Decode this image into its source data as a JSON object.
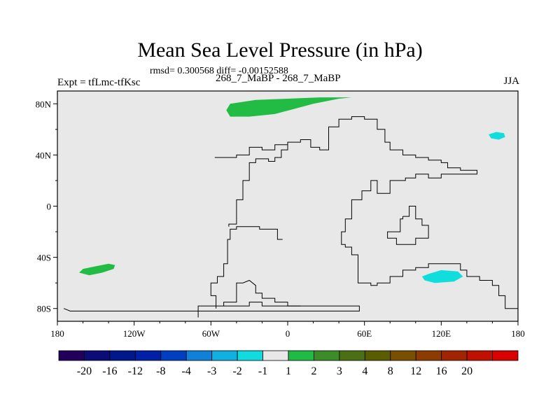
{
  "title": "Mean Sea Level Pressure (in hPa)",
  "stats": "rmsd= 0.300568 diff= -0.00152588",
  "experiment": "Expt = tfLmc-tfKsc",
  "subtitle": "268_7_MaBP - 268_7_MaBP",
  "season": "JJA",
  "map": {
    "lon_range": [
      -180,
      180
    ],
    "lat_range": [
      -90,
      90
    ],
    "background_color": "#e8e8e8",
    "x_ticks": [
      {
        "lon": -180,
        "label": "180"
      },
      {
        "lon": -120,
        "label": "120W"
      },
      {
        "lon": -60,
        "label": "60W"
      },
      {
        "lon": 0,
        "label": "0"
      },
      {
        "lon": 60,
        "label": "60E"
      },
      {
        "lon": 120,
        "label": "120E"
      },
      {
        "lon": 180,
        "label": "180"
      }
    ],
    "y_ticks": [
      {
        "lat": 80,
        "label": "80N"
      },
      {
        "lat": 40,
        "label": "40N"
      },
      {
        "lat": 0,
        "label": "0"
      },
      {
        "lat": -40,
        "label": "40S"
      },
      {
        "lat": -80,
        "label": "80S"
      }
    ],
    "anomaly_regions": [
      {
        "name": "arctic-positive-anomaly",
        "category": "1 to 2",
        "color": "#22bb44",
        "polygon": [
          [
            -48,
            75
          ],
          [
            -45,
            80
          ],
          [
            -25,
            83
          ],
          [
            0,
            84
          ],
          [
            25,
            85
          ],
          [
            50,
            85
          ],
          [
            40,
            84
          ],
          [
            20,
            80
          ],
          [
            5,
            76
          ],
          [
            -10,
            72
          ],
          [
            -30,
            70
          ],
          [
            -45,
            70
          ]
        ]
      },
      {
        "name": "south-pacific-positive-anomaly",
        "category": "1 to 2",
        "color": "#22bb44",
        "polygon": [
          [
            -163,
            -52
          ],
          [
            -160,
            -49
          ],
          [
            -150,
            -47
          ],
          [
            -140,
            -45
          ],
          [
            -135,
            -46
          ],
          [
            -136,
            -49
          ],
          [
            -145,
            -52
          ],
          [
            -155,
            -54
          ]
        ]
      },
      {
        "name": "north-pacific-negative-anomaly",
        "category": "-2 to -1",
        "color": "#11dddd",
        "polygon": [
          [
            157,
            56
          ],
          [
            163,
            58
          ],
          [
            169,
            57
          ],
          [
            170,
            54
          ],
          [
            165,
            52
          ],
          [
            159,
            53
          ]
        ]
      },
      {
        "name": "southern-ocean-negative-anomaly",
        "category": "-2 to -1",
        "color": "#11dddd",
        "polygon": [
          [
            105,
            -55
          ],
          [
            110,
            -53
          ],
          [
            120,
            -50
          ],
          [
            133,
            -51
          ],
          [
            137,
            -55
          ],
          [
            130,
            -59
          ],
          [
            115,
            -60
          ],
          [
            107,
            -58
          ]
        ]
      }
    ],
    "coastlines": [
      {
        "name": "main-continent-coastline",
        "points": [
          [
            -57,
            38
          ],
          [
            -40,
            38
          ],
          [
            -40,
            40
          ],
          [
            -30,
            40
          ],
          [
            -30,
            46
          ],
          [
            -20,
            46
          ],
          [
            -20,
            44
          ],
          [
            -10,
            44
          ],
          [
            -10,
            48
          ],
          [
            0,
            48
          ],
          [
            0,
            50
          ],
          [
            10,
            50
          ],
          [
            10,
            52
          ],
          [
            18,
            52
          ],
          [
            18,
            46
          ],
          [
            25,
            46
          ],
          [
            25,
            44
          ],
          [
            32,
            44
          ],
          [
            32,
            62
          ],
          [
            40,
            62
          ],
          [
            40,
            68
          ],
          [
            50,
            68
          ],
          [
            50,
            70
          ],
          [
            60,
            70
          ],
          [
            60,
            68
          ],
          [
            70,
            68
          ],
          [
            70,
            60
          ],
          [
            76,
            60
          ],
          [
            76,
            50
          ],
          [
            80,
            50
          ],
          [
            80,
            44
          ],
          [
            90,
            44
          ],
          [
            90,
            40
          ],
          [
            100,
            40
          ],
          [
            100,
            38
          ],
          [
            110,
            38
          ],
          [
            110,
            36
          ],
          [
            120,
            36
          ],
          [
            120,
            34
          ],
          [
            125,
            34
          ],
          [
            125,
            30
          ],
          [
            135,
            30
          ],
          [
            135,
            28
          ],
          [
            148,
            28
          ],
          [
            148,
            25
          ],
          [
            120,
            25
          ],
          [
            120,
            22
          ],
          [
            110,
            22
          ],
          [
            110,
            25
          ],
          [
            100,
            25
          ],
          [
            100,
            22
          ],
          [
            92,
            22
          ],
          [
            92,
            20
          ],
          [
            80,
            20
          ],
          [
            80,
            10
          ],
          [
            70,
            10
          ],
          [
            70,
            20
          ],
          [
            65,
            20
          ],
          [
            65,
            12
          ],
          [
            58,
            12
          ],
          [
            58,
            5
          ],
          [
            50,
            5
          ],
          [
            50,
            -10
          ],
          [
            45,
            -10
          ],
          [
            45,
            -20
          ],
          [
            42,
            -20
          ],
          [
            42,
            -30
          ],
          [
            45,
            -30
          ],
          [
            45,
            -32
          ],
          [
            50,
            -32
          ],
          [
            50,
            -38
          ],
          [
            55,
            -38
          ],
          [
            55,
            -60
          ],
          [
            65,
            -60
          ],
          [
            65,
            -62
          ],
          [
            70,
            -62
          ],
          [
            70,
            -60
          ],
          [
            80,
            -60
          ],
          [
            80,
            -55
          ],
          [
            90,
            -55
          ],
          [
            90,
            -50
          ],
          [
            100,
            -50
          ],
          [
            100,
            -48
          ],
          [
            110,
            -48
          ],
          [
            110,
            -45
          ],
          [
            135,
            -45
          ],
          [
            135,
            -50
          ],
          [
            140,
            -50
          ],
          [
            140,
            -55
          ],
          [
            150,
            -55
          ],
          [
            150,
            -58
          ],
          [
            160,
            -58
          ],
          [
            160,
            -62
          ],
          [
            165,
            -62
          ],
          [
            165,
            -70
          ],
          [
            170,
            -70
          ],
          [
            170,
            -80
          ],
          [
            180,
            -80
          ]
        ]
      },
      {
        "name": "western-continent-coastline",
        "points": [
          [
            -56,
            -80
          ],
          [
            -56,
            -70
          ],
          [
            -60,
            -70
          ],
          [
            -60,
            -60
          ],
          [
            -55,
            -60
          ],
          [
            -55,
            -55
          ],
          [
            -50,
            -55
          ],
          [
            -50,
            -45
          ],
          [
            -47,
            -45
          ],
          [
            -47,
            -26
          ],
          [
            -45,
            -26
          ],
          [
            -45,
            -18
          ],
          [
            -40,
            -18
          ],
          [
            -40,
            -16
          ],
          [
            -22,
            -16
          ],
          [
            -22,
            -18
          ],
          [
            -8,
            -18
          ],
          [
            -8,
            -26
          ],
          [
            -4,
            -26
          ]
        ]
      },
      {
        "name": "western-continent-north-edge",
        "points": [
          [
            -46,
            -16
          ],
          [
            -46,
            -14
          ],
          [
            -40,
            -14
          ],
          [
            -40,
            -10
          ],
          [
            -40,
            0
          ],
          [
            -40,
            5
          ],
          [
            -35,
            5
          ],
          [
            -35,
            20
          ],
          [
            -30,
            20
          ],
          [
            -30,
            34
          ],
          [
            -25,
            34
          ],
          [
            -25,
            37
          ],
          [
            -15,
            37
          ],
          [
            -15,
            35
          ],
          [
            -10,
            35
          ],
          [
            -10,
            38
          ],
          [
            -5,
            38
          ],
          [
            -5,
            44
          ],
          [
            0,
            44
          ],
          [
            0,
            50
          ]
        ]
      },
      {
        "name": "south-interior-coastline",
        "points": [
          [
            -70,
            -87
          ],
          [
            -70,
            -78
          ],
          [
            -50,
            -78
          ],
          [
            -50,
            -75
          ],
          [
            -40,
            -75
          ],
          [
            -40,
            -60
          ],
          [
            -35,
            -60
          ],
          [
            -30,
            -58
          ],
          [
            -25,
            -62
          ],
          [
            -25,
            -68
          ],
          [
            -20,
            -68
          ],
          [
            -20,
            -72
          ],
          [
            -10,
            -72
          ],
          [
            -10,
            -75
          ],
          [
            0,
            -75
          ],
          [
            0,
            -78
          ],
          [
            10,
            -78
          ]
        ]
      },
      {
        "name": "antarctic-coastline",
        "points": [
          [
            -175,
            -80
          ],
          [
            -170,
            -82
          ],
          [
            -130,
            -82
          ],
          [
            -40,
            -82
          ],
          [
            10,
            -82
          ],
          [
            56,
            -82
          ],
          [
            56,
            -78
          ],
          [
            30,
            -78
          ],
          [
            20,
            -78
          ],
          [
            0,
            -78
          ],
          [
            -20,
            -78
          ],
          [
            -20,
            -75
          ],
          [
            -30,
            -75
          ],
          [
            -30,
            -78
          ],
          [
            -50,
            -78
          ]
        ]
      },
      {
        "name": "interior-island-coastline",
        "points": [
          [
            90,
            -8
          ],
          [
            95,
            -8
          ],
          [
            95,
            0
          ],
          [
            100,
            0
          ],
          [
            100,
            -10
          ],
          [
            105,
            -10
          ],
          [
            105,
            -15
          ],
          [
            110,
            -15
          ],
          [
            110,
            -25
          ],
          [
            100,
            -25
          ],
          [
            100,
            -30
          ],
          [
            85,
            -30
          ],
          [
            85,
            -25
          ],
          [
            78,
            -25
          ],
          [
            78,
            -20
          ],
          [
            88,
            -20
          ],
          [
            88,
            -10
          ],
          [
            90,
            -10
          ],
          [
            90,
            -8
          ]
        ]
      }
    ]
  },
  "colorbar": {
    "colors": [
      "#20005a",
      "#0c0c78",
      "#00188c",
      "#0020a8",
      "#0040c0",
      "#1080d8",
      "#10b0e0",
      "#10dce0",
      "#e8e8e8",
      "#20bb44",
      "#3c8c28",
      "#4c6e14",
      "#5a5c00",
      "#785000",
      "#8c3c00",
      "#a02400",
      "#c01000",
      "#d80000"
    ],
    "labels": [
      "-20",
      "-16",
      "-12",
      "-8",
      "-4",
      "-3",
      "-2",
      "-1",
      "1",
      "2",
      "3",
      "4",
      "8",
      "12",
      "16",
      "20"
    ]
  }
}
